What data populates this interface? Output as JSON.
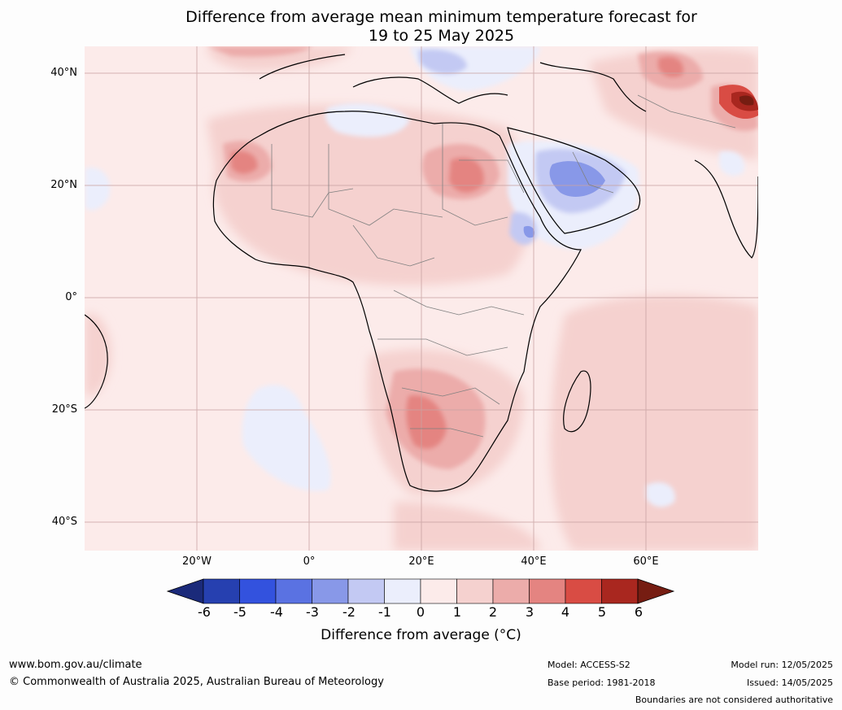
{
  "title": {
    "line1": "Difference from average mean minimum temperature forecast for",
    "line2": "19 to 25 May 2025"
  },
  "map": {
    "lat_labels": [
      "40°N",
      "20°N",
      "0°",
      "20°S",
      "40°S"
    ],
    "lon_labels": [
      "20°W",
      "0°",
      "20°E",
      "40°E",
      "60°E"
    ],
    "extent": {
      "lon": [
        -40,
        80
      ],
      "lat": [
        -45,
        45
      ]
    },
    "region": "Africa, Middle East and western Asia",
    "anomalies": [
      {
        "area": "Arabian Peninsula",
        "value": -2
      },
      {
        "area": "Horn of Africa",
        "value": -2
      },
      {
        "area": "Balkans / Turkey",
        "value": -1
      },
      {
        "area": "Southern Africa",
        "value": 4
      },
      {
        "area": "Central Sahara / Chad",
        "value": 4
      },
      {
        "area": "Western Sahara",
        "value": 4
      },
      {
        "area": "Iran / Afghanistan",
        "value": 6
      }
    ]
  },
  "colorbar": {
    "levels": [
      "-6",
      "-5",
      "-4",
      "-3",
      "-2",
      "-1",
      "0",
      "1",
      "2",
      "3",
      "4",
      "5",
      "6"
    ],
    "colors": [
      "#1b2a7a",
      "#2640b0",
      "#3352de",
      "#5a72e2",
      "#8898e8",
      "#c3c9f3",
      "#ebeefc",
      "#fcebea",
      "#f5d1cf",
      "#ecacaa",
      "#e48481",
      "#d94c44",
      "#a9271f",
      "#761d12"
    ],
    "title": "Difference from average (°C)"
  },
  "footer": {
    "website": "www.bom.gov.au/climate",
    "copyright": "© Commonwealth of Australia 2025, Australian Bureau of Meteorology",
    "model": "Model: ACCESS-S2",
    "base_period": "Base period: 1981-2018",
    "model_run": "Model run: 12/05/2025",
    "issued": "Issued: 14/05/2025",
    "disclaimer": "Boundaries are not considered authoritative"
  }
}
